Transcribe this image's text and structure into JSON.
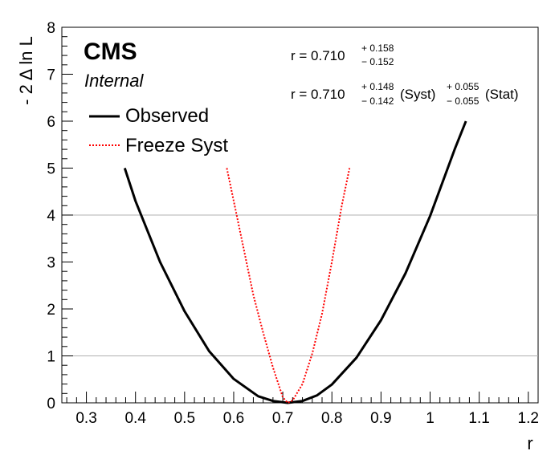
{
  "chart_data": {
    "type": "line",
    "xlabel": "r",
    "ylabel": "- 2 Δ ln L",
    "xlim": [
      0.25,
      1.22
    ],
    "ylim": [
      0,
      8
    ],
    "x_ticks": [
      "0.3",
      "0.4",
      "0.5",
      "0.6",
      "0.7",
      "0.8",
      "0.9",
      "1",
      "1.1",
      "1.2"
    ],
    "y_ticks": [
      "0",
      "1",
      "2",
      "3",
      "4",
      "5",
      "6",
      "7",
      "8"
    ],
    "reference_lines": [
      1,
      4
    ],
    "grid": false,
    "legend_position": "top-left",
    "series": [
      {
        "name": "Observed",
        "color": "#000000",
        "style": "solid",
        "x": [
          0.378,
          0.4,
          0.45,
          0.5,
          0.55,
          0.6,
          0.65,
          0.68,
          0.71,
          0.74,
          0.77,
          0.8,
          0.85,
          0.9,
          0.95,
          1.0,
          1.05,
          1.073
        ],
        "y": [
          5.0,
          4.3,
          3.0,
          1.95,
          1.1,
          0.51,
          0.14,
          0.04,
          0.0,
          0.04,
          0.16,
          0.39,
          0.96,
          1.76,
          2.76,
          3.98,
          5.4,
          6.0
        ]
      },
      {
        "name": "Freeze Syst",
        "color": "#ff0000",
        "style": "dotted",
        "x": [
          0.586,
          0.6,
          0.62,
          0.64,
          0.66,
          0.68,
          0.7,
          0.71,
          0.72,
          0.74,
          0.76,
          0.78,
          0.8,
          0.82,
          0.836
        ],
        "y": [
          5.0,
          4.3,
          3.3,
          2.3,
          1.5,
          0.75,
          0.12,
          0.0,
          0.05,
          0.4,
          1.05,
          1.9,
          3.0,
          4.2,
          5.0
        ]
      }
    ]
  },
  "labels": {
    "cms": "CMS",
    "internal": "Internal"
  },
  "legend": {
    "observed": "Observed",
    "freeze": "Freeze Syst"
  },
  "results": {
    "line1": {
      "main": "r = 0.710",
      "up": "+ 0.158",
      "down": "− 0.152"
    },
    "line2": {
      "main": "r = 0.710",
      "syst_up": "+ 0.148",
      "syst_down": "− 0.142",
      "syst_label": "(Syst)",
      "stat_up": "+ 0.055",
      "stat_down": "− 0.055",
      "stat_label": "(Stat)"
    }
  }
}
